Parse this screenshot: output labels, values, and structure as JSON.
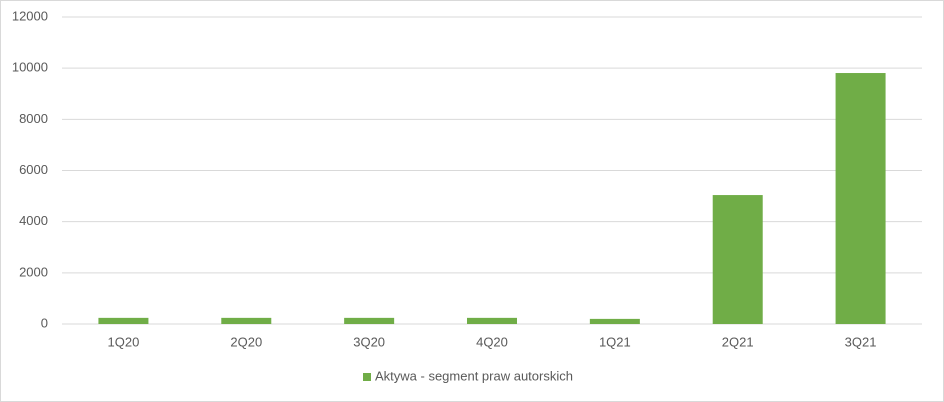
{
  "chart_data": {
    "type": "bar",
    "categories": [
      "1Q20",
      "2Q20",
      "3Q20",
      "4Q20",
      "1Q21",
      "2Q21",
      "3Q21"
    ],
    "series": [
      {
        "name": "Aktywa - segment praw autorskich",
        "color": "#70ad47",
        "values": [
          240,
          240,
          240,
          240,
          200,
          5040,
          9810
        ]
      }
    ],
    "ylim": [
      0,
      12000
    ],
    "yticks": [
      0,
      2000,
      4000,
      6000,
      8000,
      10000,
      12000
    ],
    "grid": true,
    "legend": "bottom"
  }
}
